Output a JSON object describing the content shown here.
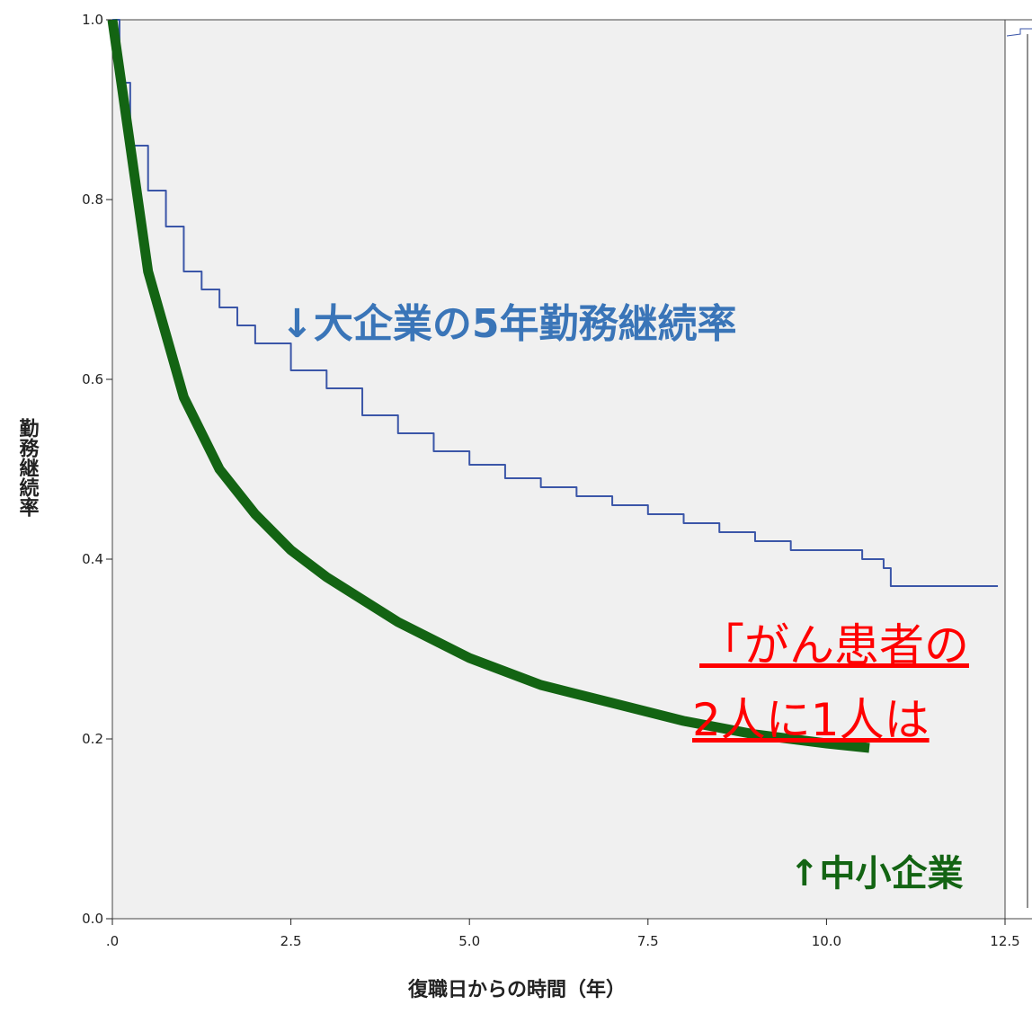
{
  "chart_data": {
    "type": "line",
    "x_label": "復職日からの時間（年）",
    "y_label": "勤務継続率",
    "xlim": [
      0,
      12.5
    ],
    "ylim": [
      0,
      1.0
    ],
    "xticks": [
      {
        "value": 0,
        "label": ".0"
      },
      2.5,
      {
        "value": 5,
        "label": "5.0"
      },
      7.5,
      {
        "value": 10,
        "label": "10.0"
      },
      12.5
    ],
    "yticks": [
      {
        "value": 0,
        "label": "0.0"
      },
      0.2,
      0.4,
      0.6,
      0.8,
      {
        "value": 1,
        "label": "1.0"
      }
    ],
    "series": [
      {
        "color": "#3b56a8",
        "step": true,
        "x": [
          0,
          0.1,
          0.25,
          0.5,
          0.75,
          1.0,
          1.25,
          1.5,
          1.75,
          2.0,
          2.5,
          3.0,
          3.5,
          4.0,
          4.5,
          5.0,
          5.5,
          6.0,
          6.5,
          7.0,
          7.5,
          8.0,
          8.5,
          9.0,
          9.5,
          10.0,
          10.5,
          10.8,
          10.9,
          12.4
        ],
        "values": [
          1.0,
          0.93,
          0.86,
          0.81,
          0.77,
          0.72,
          0.7,
          0.68,
          0.66,
          0.64,
          0.61,
          0.59,
          0.56,
          0.54,
          0.52,
          0.505,
          0.49,
          0.48,
          0.47,
          0.46,
          0.45,
          0.44,
          0.43,
          0.42,
          0.41,
          0.41,
          0.4,
          0.39,
          0.37,
          0.37
        ]
      },
      {
        "color": "#136413",
        "step": false,
        "x": [
          0,
          0.5,
          1,
          1.5,
          2,
          2.5,
          3,
          4,
          5,
          6,
          7,
          8,
          9,
          10,
          10.6
        ],
        "values": [
          1.0,
          0.72,
          0.58,
          0.5,
          0.45,
          0.41,
          0.38,
          0.33,
          0.29,
          0.26,
          0.24,
          0.22,
          0.205,
          0.195,
          0.19
        ]
      }
    ],
    "annotations": [
      {
        "text": "↓大企業の5年勤務継続率",
        "color": "#3a75b8"
      },
      {
        "text": "「がん患者の",
        "color": "#ff0000"
      },
      {
        "text": "2人に1人は",
        "color": "#ff0000"
      },
      {
        "text": "↑中小企業",
        "color": "#136413"
      }
    ]
  }
}
